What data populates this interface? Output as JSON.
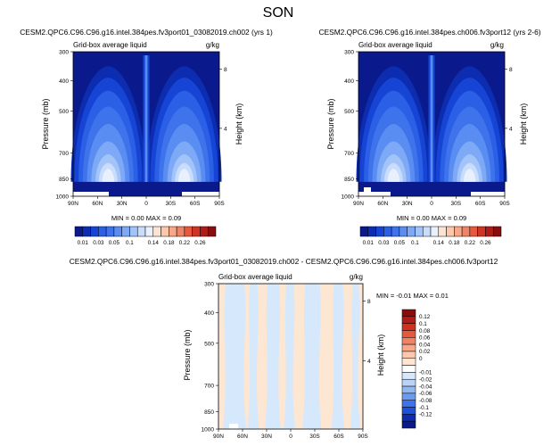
{
  "figure_title": "SON",
  "colors": {
    "blues": [
      "#0a1a8c",
      "#0d2db0",
      "#1645d6",
      "#2a5fe6",
      "#3e73ec",
      "#5a8df2",
      "#7ea9f6",
      "#a3c4f9",
      "#c9dcfc",
      "#e8f0fe"
    ],
    "diff_neg": "#d6e8fb",
    "diff_pos": "#fde6d2",
    "topo": "#ffffff"
  },
  "chart_data": [
    {
      "type": "contour",
      "title": "CESM2.QPC6.C96.C96.g16.intel.384pes.fv3port01_03082019.ch002 (yrs 1)",
      "left_label": "Grid-box average liquid",
      "right_label": "g/kg",
      "ylabel": "Pressure (mb)",
      "ylabel_right": "Height (km)",
      "xticks": [
        "90N",
        "60N",
        "30N",
        "0",
        "30S",
        "60S",
        "90S"
      ],
      "yticks": [
        "300",
        "400",
        "500",
        "700",
        "850",
        "1000"
      ],
      "yticks_right": [
        "8",
        "4"
      ],
      "xlim": [
        90,
        -90
      ],
      "ylim": [
        1000,
        300
      ],
      "stats": "MIN =   0.00   MAX =   0.09"
    },
    {
      "type": "contour",
      "title": "CESM2.QPC6.C96.C96.g16.intel.384pes.ch006.fv3port12 (yrs 2-6)",
      "left_label": "Grid-box average liquid",
      "right_label": "g/kg",
      "ylabel": "Pressure (mb)",
      "ylabel_right": "Height (km)",
      "xticks": [
        "90N",
        "60N",
        "30N",
        "0",
        "30S",
        "60S",
        "90S"
      ],
      "yticks": [
        "300",
        "400",
        "500",
        "700",
        "850",
        "1000"
      ],
      "yticks_right": [
        "8",
        "4"
      ],
      "xlim": [
        90,
        -90
      ],
      "ylim": [
        1000,
        300
      ],
      "stats": "MIN =   0.00   MAX =   0.09"
    },
    {
      "type": "contour",
      "title": "CESM2.QPC6.C96.C96.g16.intel.384pes.fv3port01_03082019.ch002 - CESM2.QPC6.C96.C96.g16.intel.384pes.ch006.fv3port12",
      "left_label": "Grid-box average liquid",
      "right_label": "g/kg",
      "ylabel": "Pressure (mb)",
      "ylabel_right": "Height (km)",
      "xticks": [
        "90N",
        "60N",
        "30N",
        "0",
        "30S",
        "60S",
        "90S"
      ],
      "yticks": [
        "300",
        "400",
        "500",
        "700",
        "850",
        "1000"
      ],
      "yticks_right": [
        "8",
        "4"
      ],
      "xlim": [
        90,
        -90
      ],
      "ylim": [
        1000,
        300
      ],
      "stats": "MIN =  -0.01   MAX =   0.01"
    }
  ],
  "colorbar_top": {
    "labels": [
      "0.01",
      "0.03",
      "0.05",
      "0.1",
      "0.14",
      "0.18",
      "0.22",
      "0.26"
    ],
    "colors": [
      "#0a1a8c",
      "#0d2db0",
      "#1645d6",
      "#2a5fe6",
      "#3e73ec",
      "#5a8df2",
      "#7ea9f6",
      "#a3c4f9",
      "#c9dcfc",
      "#e8f0fe",
      "#fde3d3",
      "#fcc8ad",
      "#f8a888",
      "#f08363",
      "#e55a3f",
      "#cf3426",
      "#b01c18",
      "#8a0c0c"
    ]
  },
  "colorbar_diff": {
    "labels": [
      "0.12",
      "0.1",
      "0.08",
      "0.06",
      "0.04",
      "0.02",
      "0",
      "-0.01",
      "-0.02",
      "-0.04",
      "-0.06",
      "-0.08",
      "-0.1",
      "-0.12"
    ],
    "colors": [
      "#8a0c0c",
      "#b01c18",
      "#d0321f",
      "#e55a3f",
      "#f08363",
      "#f8a888",
      "#fcc8ad",
      "#fde6d2",
      "#ffffff",
      "#d6e8fb",
      "#b9d4f7",
      "#92b8f3",
      "#6b9bef",
      "#3e73ec",
      "#1f52d9",
      "#0d2db0",
      "#0a1a8c"
    ]
  }
}
